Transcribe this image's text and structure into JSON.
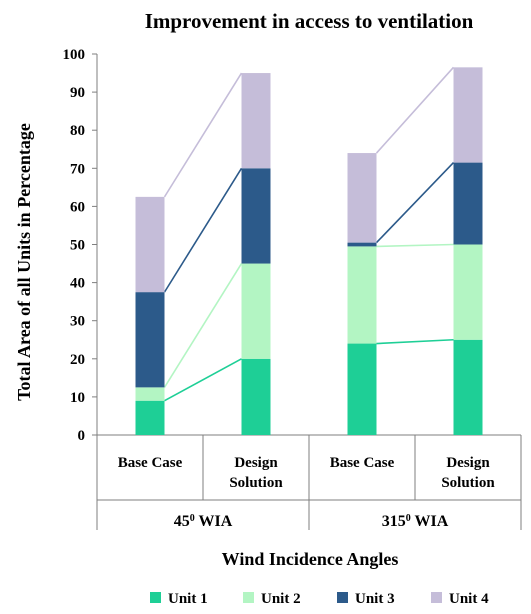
{
  "chart_data": {
    "type": "bar",
    "stacked": true,
    "title": "Improvement in access to ventilation",
    "xlabel": "Wind Incidence Angles",
    "ylabel": "Total Area of all Units  in Percentage",
    "ylim": [
      0,
      100
    ],
    "yticks": [
      0,
      10,
      20,
      30,
      40,
      50,
      60,
      70,
      80,
      90,
      100
    ],
    "categories": [
      "Base Case",
      "Design Solution",
      "Base Case",
      "Design Solution"
    ],
    "category_lines": [
      [
        "Base Case"
      ],
      [
        "Design",
        "Solution"
      ],
      [
        "Base Case"
      ],
      [
        "Design",
        "Solution"
      ]
    ],
    "groups": [
      {
        "label": "45",
        "sup": "0",
        "suffix": " WIA",
        "span": [
          0,
          1
        ]
      },
      {
        "label": "315",
        "sup": "0",
        "suffix": " WIA",
        "span": [
          2,
          3
        ]
      }
    ],
    "series": [
      {
        "name": "Unit 1",
        "color": "#1ecf96",
        "values": [
          9,
          20,
          24,
          25
        ]
      },
      {
        "name": "Unit 2",
        "color": "#b3f5c3",
        "values": [
          3.5,
          25,
          25.5,
          25
        ]
      },
      {
        "name": "Unit 3",
        "color": "#2c5a8a",
        "values": [
          25,
          25,
          1,
          21.5
        ]
      },
      {
        "name": "Unit 4",
        "color": "#c5bdd9",
        "values": [
          25,
          25,
          23.5,
          25
        ]
      }
    ],
    "connectors": true,
    "legend": "bottom",
    "grid": false
  }
}
